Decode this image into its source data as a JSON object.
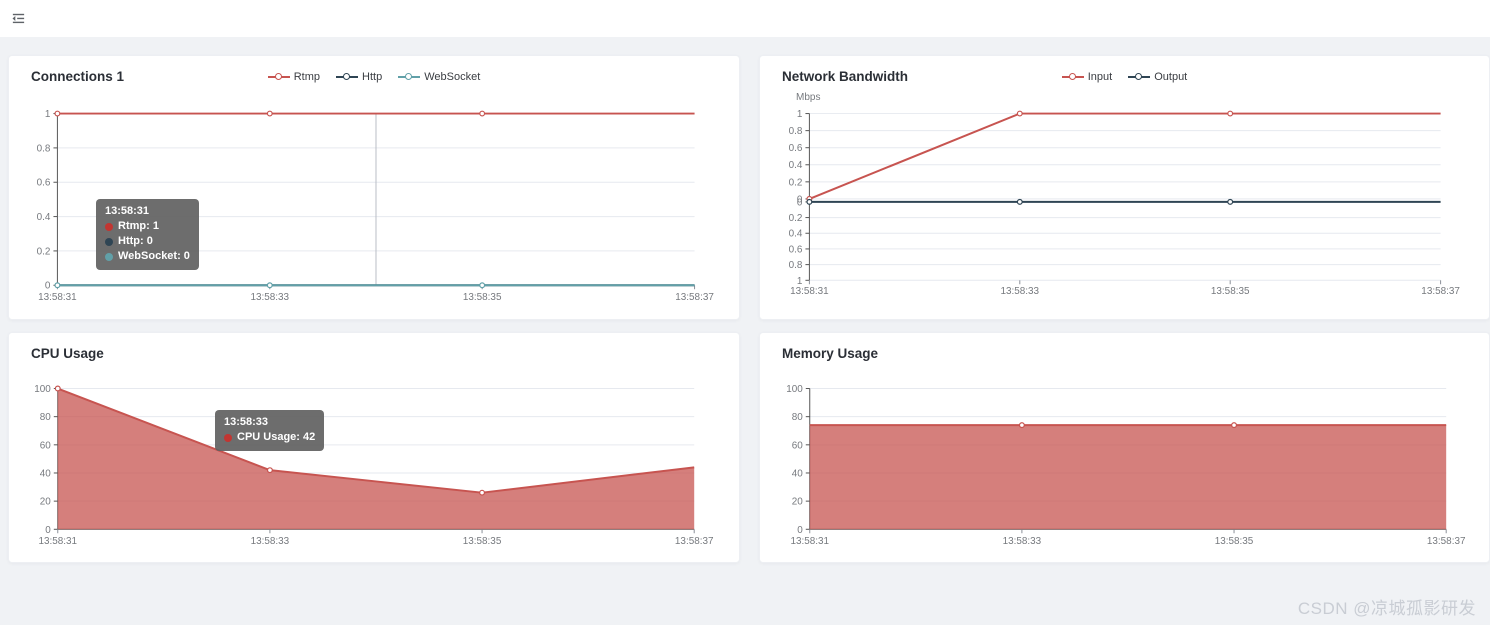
{
  "header": {
    "menu_icon": "menu-fold"
  },
  "watermark": {
    "text": "CSDN @凉城孤影研发"
  },
  "colors": {
    "page_bg": "#f0f2f5",
    "card_bg": "#ffffff",
    "title_text": "#2b2f36",
    "axis_text": "#76797e",
    "grid_line": "#e6e9ef",
    "axis_line": "#555555",
    "axis_pointer": "#b9bdc5",
    "tooltip_bg": "rgba(97,97,97,0.92)",
    "tooltip_text": "#ffffff",
    "watermark": "#c9cdd4",
    "red": "#c75450",
    "navy": "#2f4554",
    "teal": "#61a0a8"
  },
  "chart_data": [
    {
      "type": "line",
      "title": "Connections 1",
      "x": [
        "13:58:31",
        "13:58:33",
        "13:58:35",
        "13:58:37"
      ],
      "series": [
        {
          "name": "Rtmp",
          "color": "#c75450",
          "values": [
            1,
            1,
            1,
            1
          ]
        },
        {
          "name": "Http",
          "color": "#2f4554",
          "values": [
            0,
            0,
            0,
            0
          ]
        },
        {
          "name": "WebSocket",
          "color": "#61a0a8",
          "values": [
            0,
            0,
            0,
            0
          ]
        }
      ],
      "ylim": [
        0,
        1
      ],
      "yticks": [
        "1",
        "0.8",
        "0.6",
        "0.4",
        "0.2",
        "0"
      ],
      "legend_position": "top",
      "grid": true,
      "tooltip": {
        "title": "13:58:31",
        "rows": [
          {
            "text": "Rtmp: 1",
            "color": "#c23531"
          },
          {
            "text": "Http: 0",
            "color": "#2f4554"
          },
          {
            "text": "WebSocket: 0",
            "color": "#61a0a8"
          }
        ]
      }
    },
    {
      "type": "line",
      "title": "Network Bandwidth",
      "ylabel": "Mbps",
      "x": [
        "13:58:31",
        "13:58:33",
        "13:58:35",
        "13:58:37"
      ],
      "series": [
        {
          "name": "Input",
          "color": "#c75450",
          "values": [
            0,
            1,
            1,
            1
          ],
          "grid": 0
        },
        {
          "name": "Output",
          "color": "#2f4554",
          "values": [
            0,
            0,
            0,
            0
          ],
          "grid": 1
        }
      ],
      "grids": [
        {
          "ylim": [
            0,
            1
          ],
          "inverted": false,
          "yticks": [
            "1",
            "0.8",
            "0.6",
            "0.4",
            "0.2",
            "0"
          ]
        },
        {
          "ylim": [
            0,
            1
          ],
          "inverted": true,
          "yticks": [
            "0",
            "0.2",
            "0.4",
            "0.6",
            "0.8",
            "1"
          ]
        }
      ],
      "legend_position": "top",
      "grid": true
    },
    {
      "type": "area",
      "title": "CPU Usage",
      "x": [
        "13:58:31",
        "13:58:33",
        "13:58:35",
        "13:58:37"
      ],
      "series": [
        {
          "name": "CPU Usage",
          "color": "#c75450",
          "fill": "rgba(199,84,80,0.75)",
          "values": [
            100,
            42,
            26,
            44
          ]
        }
      ],
      "ylim": [
        0,
        100
      ],
      "yticks": [
        "100",
        "80",
        "60",
        "40",
        "20",
        "0"
      ],
      "grid": true,
      "tooltip": {
        "title": "13:58:33",
        "rows": [
          {
            "text": "CPU Usage: 42",
            "color": "#c23531"
          }
        ]
      }
    },
    {
      "type": "area",
      "title": "Memory Usage",
      "x": [
        "13:58:31",
        "13:58:33",
        "13:58:35",
        "13:58:37"
      ],
      "series": [
        {
          "name": "Memory Usage",
          "color": "#c75450",
          "fill": "rgba(199,84,80,0.75)",
          "values": [
            74,
            74,
            74,
            74
          ]
        }
      ],
      "ylim": [
        0,
        100
      ],
      "yticks": [
        "100",
        "80",
        "60",
        "40",
        "20",
        "0"
      ],
      "grid": true
    }
  ]
}
